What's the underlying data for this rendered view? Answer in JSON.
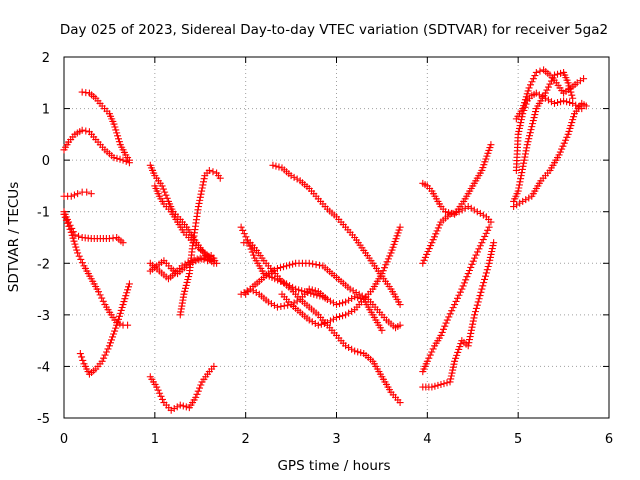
{
  "chart_data": {
    "type": "scatter",
    "title": "Day 025 of 2023, Sidereal Day-to-day VTEC variation (SDTVAR) for receiver 5ga2",
    "xlabel": "GPS time / hours",
    "ylabel": "SDTVAR / TECUs",
    "xlim": [
      0,
      6
    ],
    "ylim": [
      -5,
      2
    ],
    "xticks": [
      "0",
      "1",
      "2",
      "3",
      "4",
      "5",
      "6"
    ],
    "yticks": [
      "-5",
      "-4",
      "-3",
      "-2",
      "-1",
      "0",
      "1",
      "2"
    ],
    "grid": true,
    "marker": "+",
    "color": "#ff0000",
    "series": [
      {
        "x": [
          0.0,
          0.05,
          0.12,
          0.2,
          0.28,
          0.35,
          0.45,
          0.55,
          0.65,
          0.72
        ],
        "y": [
          0.2,
          0.35,
          0.5,
          0.58,
          0.55,
          0.4,
          0.2,
          0.05,
          0.0,
          -0.05
        ]
      },
      {
        "x": [
          0.2,
          0.28,
          0.35,
          0.42,
          0.5,
          0.55,
          0.62,
          0.68,
          0.72
        ],
        "y": [
          1.32,
          1.3,
          1.2,
          1.05,
          0.9,
          0.7,
          0.3,
          0.1,
          0.0
        ]
      },
      {
        "x": [
          0.0,
          0.08,
          0.15,
          0.2,
          0.25,
          0.3
        ],
        "y": [
          -0.7,
          -0.7,
          -0.65,
          -0.62,
          -0.62,
          -0.65
        ]
      },
      {
        "x": [
          0.0,
          0.05,
          0.12,
          0.2,
          0.3,
          0.4,
          0.5,
          0.58,
          0.65
        ],
        "y": [
          -1.0,
          -1.2,
          -1.45,
          -1.5,
          -1.52,
          -1.52,
          -1.52,
          -1.5,
          -1.6
        ]
      },
      {
        "x": [
          0.0,
          0.08,
          0.15,
          0.22,
          0.3,
          0.38,
          0.45,
          0.52,
          0.58,
          0.65,
          0.7
        ],
        "y": [
          -1.05,
          -1.4,
          -1.8,
          -2.05,
          -2.3,
          -2.55,
          -2.8,
          -3.0,
          -3.15,
          -3.2,
          -3.2
        ]
      },
      {
        "x": [
          0.18,
          0.22,
          0.28,
          0.35,
          0.42,
          0.5,
          0.58,
          0.65,
          0.72
        ],
        "y": [
          -3.75,
          -3.95,
          -4.15,
          -4.05,
          -3.9,
          -3.6,
          -3.2,
          -2.8,
          -2.4
        ]
      },
      {
        "x": [
          0.95,
          1.0,
          1.08,
          1.15,
          1.2,
          1.28,
          1.35,
          1.42,
          1.5,
          1.58,
          1.65
        ],
        "y": [
          -0.1,
          -0.3,
          -0.5,
          -0.8,
          -1.0,
          -1.15,
          -1.3,
          -1.5,
          -1.7,
          -1.9,
          -2.0
        ]
      },
      {
        "x": [
          1.0,
          1.05,
          1.1,
          1.18,
          1.25,
          1.32,
          1.4,
          1.48,
          1.55,
          1.62
        ],
        "y": [
          -0.5,
          -0.7,
          -0.85,
          -1.0,
          -1.2,
          -1.4,
          -1.55,
          -1.7,
          -1.8,
          -1.9
        ]
      },
      {
        "x": [
          0.95,
          1.02,
          1.1,
          1.18,
          1.25,
          1.35,
          1.45,
          1.55,
          1.62,
          1.68
        ],
        "y": [
          -2.15,
          -2.05,
          -1.95,
          -2.1,
          -2.2,
          -2.05,
          -1.95,
          -1.9,
          -1.85,
          -2.0
        ]
      },
      {
        "x": [
          0.95,
          1.05,
          1.15,
          1.22,
          1.3,
          1.4,
          1.5,
          1.58,
          1.65
        ],
        "y": [
          -2.0,
          -2.15,
          -2.3,
          -2.2,
          -2.05,
          -1.95,
          -1.9,
          -1.95,
          -1.9
        ]
      },
      {
        "x": [
          1.28,
          1.32,
          1.38,
          1.42,
          1.48,
          1.55,
          1.6,
          1.68,
          1.72
        ],
        "y": [
          -3.0,
          -2.6,
          -2.2,
          -1.6,
          -0.9,
          -0.3,
          -0.2,
          -0.25,
          -0.35
        ]
      },
      {
        "x": [
          0.95,
          1.02,
          1.1,
          1.18,
          1.28,
          1.38,
          1.45,
          1.52,
          1.6,
          1.65
        ],
        "y": [
          -4.2,
          -4.4,
          -4.7,
          -4.85,
          -4.75,
          -4.8,
          -4.6,
          -4.3,
          -4.1,
          -4.0
        ]
      },
      {
        "x": [
          1.95,
          2.02,
          2.1,
          2.2,
          2.32,
          2.45,
          2.55,
          2.65,
          2.75,
          2.85,
          2.9
        ],
        "y": [
          -1.3,
          -1.55,
          -1.9,
          -2.2,
          -2.3,
          -2.4,
          -2.5,
          -2.55,
          -2.6,
          -2.65,
          -2.7
        ]
      },
      {
        "x": [
          1.98,
          2.05,
          2.12,
          2.2,
          2.3,
          2.4,
          2.5,
          2.6,
          2.7,
          2.8,
          2.9,
          3.0,
          3.1,
          3.2,
          3.3,
          3.4,
          3.5,
          3.6,
          3.7
        ],
        "y": [
          -1.6,
          -1.6,
          -1.75,
          -1.95,
          -2.15,
          -2.35,
          -2.5,
          -2.7,
          -2.85,
          -3.0,
          -3.2,
          -3.4,
          -3.6,
          -3.7,
          -3.75,
          -3.9,
          -4.2,
          -4.5,
          -4.7
        ]
      },
      {
        "x": [
          2.0,
          2.08,
          2.15,
          2.25,
          2.35,
          2.45,
          2.55,
          2.7,
          2.85,
          2.95,
          3.05,
          3.15,
          3.25,
          3.35,
          3.45,
          3.55,
          3.65,
          3.7
        ],
        "y": [
          -2.6,
          -2.45,
          -2.35,
          -2.2,
          -2.1,
          -2.05,
          -2.0,
          -2.0,
          -2.05,
          -2.2,
          -2.35,
          -2.5,
          -2.6,
          -2.7,
          -2.9,
          -3.1,
          -3.25,
          -3.2
        ]
      },
      {
        "x": [
          1.95,
          2.05,
          2.15,
          2.25,
          2.35,
          2.5,
          2.6,
          2.7,
          2.8,
          2.9,
          3.0,
          3.1,
          3.2,
          3.3,
          3.4,
          3.5
        ],
        "y": [
          -2.6,
          -2.5,
          -2.6,
          -2.75,
          -2.85,
          -2.8,
          -2.7,
          -2.5,
          -2.55,
          -2.7,
          -2.8,
          -2.75,
          -2.65,
          -2.7,
          -3.0,
          -3.3
        ]
      },
      {
        "x": [
          2.3,
          2.4,
          2.5,
          2.6,
          2.7,
          2.8,
          2.9,
          3.0,
          3.1,
          3.2,
          3.3,
          3.4,
          3.5,
          3.6,
          3.7
        ],
        "y": [
          -0.1,
          -0.15,
          -0.3,
          -0.4,
          -0.55,
          -0.75,
          -0.95,
          -1.1,
          -1.3,
          -1.5,
          -1.75,
          -2.0,
          -2.25,
          -2.5,
          -2.8
        ]
      },
      {
        "x": [
          2.4,
          2.5,
          2.6,
          2.7,
          2.8,
          2.9,
          3.0,
          3.1,
          3.2,
          3.3,
          3.4,
          3.5,
          3.6,
          3.7
        ],
        "y": [
          -2.6,
          -2.8,
          -2.95,
          -3.1,
          -3.2,
          -3.15,
          -3.05,
          -3.0,
          -2.9,
          -2.7,
          -2.5,
          -2.2,
          -1.8,
          -1.3
        ]
      },
      {
        "x": [
          3.95,
          4.0,
          4.05,
          4.1,
          4.15,
          4.2,
          4.3,
          4.4,
          4.5,
          4.6,
          4.7
        ],
        "y": [
          -0.45,
          -0.5,
          -0.6,
          -0.75,
          -0.9,
          -1.0,
          -1.05,
          -0.8,
          -0.5,
          -0.2,
          0.3
        ]
      },
      {
        "x": [
          3.95,
          4.05,
          4.15,
          4.25,
          4.35,
          4.45,
          4.55,
          4.65,
          4.7
        ],
        "y": [
          -2.0,
          -1.6,
          -1.2,
          -1.05,
          -1.0,
          -0.9,
          -1.0,
          -1.1,
          -1.2
        ]
      },
      {
        "x": [
          3.95,
          4.0,
          4.08,
          4.15,
          4.22,
          4.3,
          4.38,
          4.45,
          4.52,
          4.6,
          4.68
        ],
        "y": [
          -4.1,
          -3.9,
          -3.6,
          -3.4,
          -3.1,
          -2.8,
          -2.5,
          -2.2,
          -1.9,
          -1.6,
          -1.3
        ]
      },
      {
        "x": [
          3.95,
          4.05,
          4.15,
          4.25,
          4.3,
          4.38,
          4.45,
          4.52,
          4.6,
          4.68,
          4.73
        ],
        "y": [
          -4.4,
          -4.4,
          -4.35,
          -4.3,
          -3.9,
          -3.5,
          -3.6,
          -3.0,
          -2.5,
          -2.0,
          -1.6
        ]
      },
      {
        "x": [
          4.98,
          5.0,
          5.05,
          5.1,
          5.15,
          5.2,
          5.3,
          5.4,
          5.5,
          5.6,
          5.7
        ],
        "y": [
          -0.2,
          0.5,
          0.9,
          1.15,
          1.25,
          1.3,
          1.2,
          1.1,
          1.15,
          1.1,
          1.0
        ]
      },
      {
        "x": [
          4.95,
          5.0,
          5.1,
          5.2,
          5.3,
          5.4,
          5.5,
          5.55,
          5.6
        ],
        "y": [
          -0.8,
          -0.6,
          0.3,
          1.0,
          1.3,
          1.65,
          1.7,
          1.5,
          1.2
        ]
      },
      {
        "x": [
          4.98,
          5.05,
          5.12,
          5.2,
          5.28,
          5.35,
          5.42,
          5.5,
          5.58,
          5.65,
          5.72
        ],
        "y": [
          0.8,
          1.0,
          1.4,
          1.7,
          1.75,
          1.65,
          1.5,
          1.3,
          1.4,
          1.5,
          1.58
        ]
      },
      {
        "x": [
          4.95,
          5.05,
          5.15,
          5.25,
          5.35,
          5.45,
          5.55,
          5.62,
          5.7,
          5.75
        ],
        "y": [
          -0.9,
          -0.8,
          -0.7,
          -0.4,
          -0.2,
          0.1,
          0.5,
          0.9,
          1.1,
          1.05
        ]
      }
    ]
  }
}
